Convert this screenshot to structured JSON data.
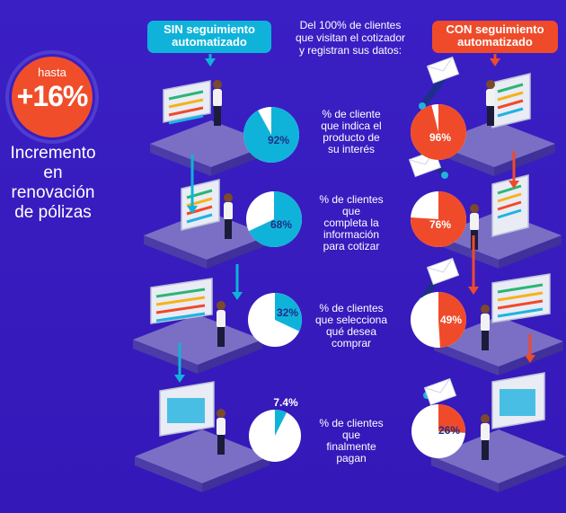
{
  "badge": {
    "prefix": "hasta",
    "value": "+16%",
    "caption_lines": [
      "Incremento",
      "en renovación",
      "de pólizas"
    ]
  },
  "header": {
    "sin_lines": [
      "SIN seguimiento",
      "automatizado"
    ],
    "con_lines": [
      "CON seguimiento",
      "automatizado"
    ],
    "intro_lines": [
      "Del 100% de clientes",
      "que visitan el cotizador",
      "y registran sus datos:"
    ]
  },
  "colors": {
    "background": "#3a1ec2",
    "sin": "#0fb3d9",
    "con": "#ef4b2a",
    "badge": "#f04e2b"
  },
  "steps": [
    {
      "label_lines": [
        "% de cliente",
        "que indica el",
        "producto de",
        "su interés"
      ],
      "sin": {
        "value": 92,
        "label": "92%"
      },
      "con": {
        "value": 96,
        "label": "96%"
      }
    },
    {
      "label_lines": [
        "% de clientes",
        "que",
        "completa la",
        "información",
        "para cotizar"
      ],
      "sin": {
        "value": 68,
        "label": "68%"
      },
      "con": {
        "value": 76,
        "label": "76%"
      }
    },
    {
      "label_lines": [
        "% de clientes",
        "que selecciona",
        "qué desea",
        "comprar"
      ],
      "sin": {
        "value": 32,
        "label": "32%"
      },
      "con": {
        "value": 49,
        "label": "49%"
      }
    },
    {
      "label_lines": [
        "% de clientes",
        "que",
        "finalmente",
        "pagan"
      ],
      "sin": {
        "value": 7.4,
        "label": "7.4%"
      },
      "con": {
        "value": 26,
        "label": "26%"
      }
    }
  ]
}
